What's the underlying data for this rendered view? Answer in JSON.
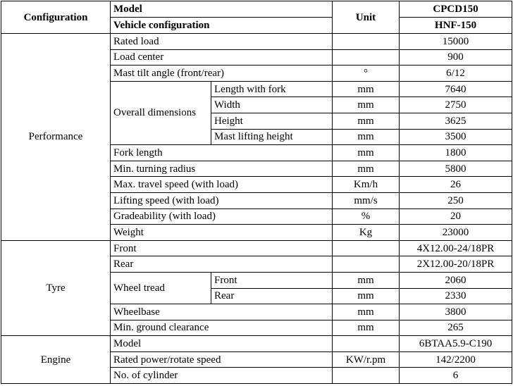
{
  "header": {
    "configuration": "Configuration",
    "model": "Model",
    "vehicle_configuration": "Vehicle configuration",
    "unit": "Unit",
    "model_value": "CPCD150",
    "vehicle_value": "HNF-150"
  },
  "groups": {
    "performance": "Performance",
    "tyre": "Tyre",
    "engine": "Engine"
  },
  "performance": {
    "rated_load": {
      "label": "Rated load",
      "unit": "",
      "value": "15000"
    },
    "load_center": {
      "label": "Load center",
      "unit": "",
      "value": "900"
    },
    "mast_tilt": {
      "label": "Mast tilt angle (front/rear)",
      "unit": "°",
      "value": "6/12"
    },
    "overall": {
      "label": "Overall dimensions",
      "length": {
        "label": "Length with fork",
        "unit": "mm",
        "value": "7640"
      },
      "width": {
        "label": "Width",
        "unit": "mm",
        "value": "2750"
      },
      "height": {
        "label": "Height",
        "unit": "mm",
        "value": "3625"
      },
      "mast_height": {
        "label": "Mast lifting height",
        "unit": "mm",
        "value": "3500"
      }
    },
    "fork_length": {
      "label": "Fork length",
      "unit": "mm",
      "value": "1800"
    },
    "turning_radius": {
      "label": "Min. turning radius",
      "unit": "mm",
      "value": "5800"
    },
    "travel_speed": {
      "label": "Max. travel speed (with load)",
      "unit": "Km/h",
      "value": "26"
    },
    "lifting_speed": {
      "label": "Lifting speed (with load)",
      "unit": "mm/s",
      "value": "250"
    },
    "gradeability": {
      "label": "Gradeability (with load)",
      "unit": "%",
      "value": "20"
    },
    "weight": {
      "label": "Weight",
      "unit": "Kg",
      "value": "23000"
    }
  },
  "tyre": {
    "front": {
      "label": "Front",
      "unit": "",
      "value": "4X12.00-24/18PR"
    },
    "rear": {
      "label": "Rear",
      "unit": "",
      "value": "2X12.00-20/18PR"
    },
    "tread": {
      "label": "Wheel tread",
      "front": {
        "label": "Front",
        "unit": "mm",
        "value": "2060"
      },
      "rear": {
        "label": "Rear",
        "unit": "mm",
        "value": "2330"
      }
    },
    "wheelbase": {
      "label": "Wheelbase",
      "unit": "mm",
      "value": "3800"
    },
    "clearance": {
      "label": "Min. ground clearance",
      "unit": "mm",
      "value": "265"
    }
  },
  "engine": {
    "model": {
      "label": "Model",
      "unit": "",
      "value": "6BTAA5.9-C190"
    },
    "power": {
      "label": "Rated power/rotate speed",
      "unit": "KW/r.pm",
      "value": "142/2200"
    },
    "cylinder": {
      "label": "No. of cylinder",
      "unit": "",
      "value": "6"
    }
  }
}
